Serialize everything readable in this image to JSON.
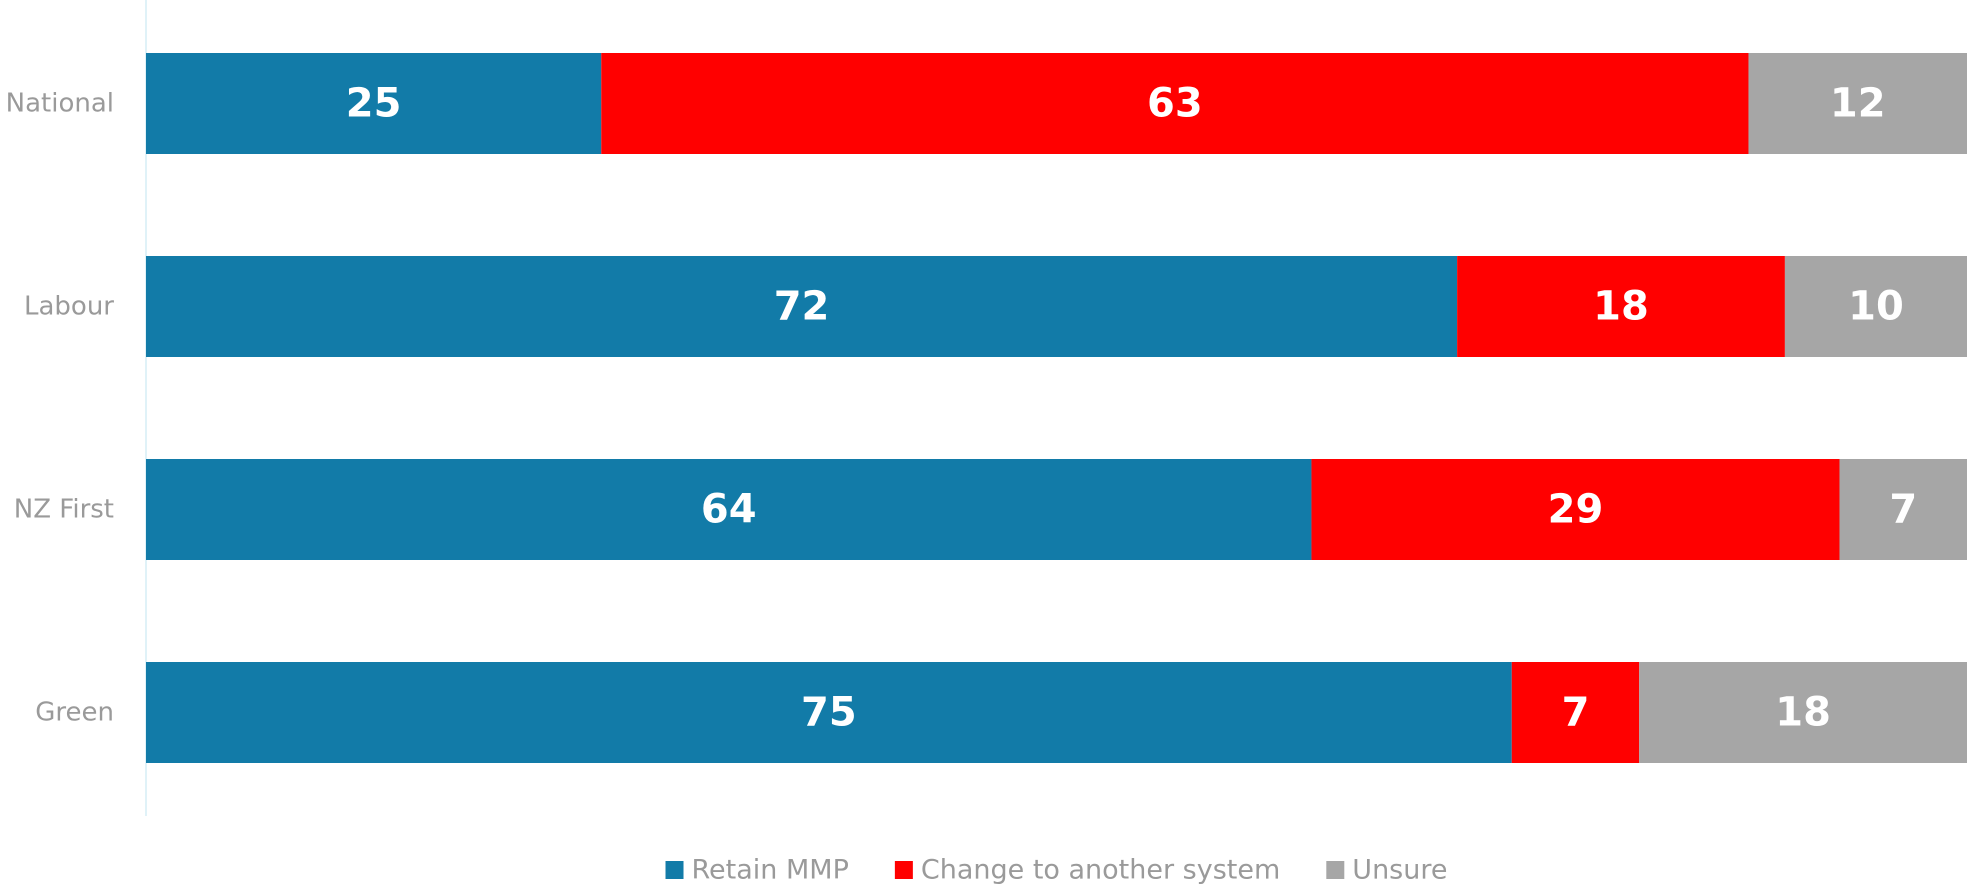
{
  "chart_data": {
    "type": "bar",
    "orientation": "horizontal",
    "stacked": true,
    "categories": [
      "National",
      "Labour",
      "NZ First",
      "Green"
    ],
    "series": [
      {
        "name": "Retain MMP",
        "values": [
          25,
          72,
          64,
          75
        ],
        "color": "#127ba8"
      },
      {
        "name": "Change to another system",
        "values": [
          63,
          18,
          29,
          7
        ],
        "color": "#ff0000"
      },
      {
        "name": "Unsure",
        "values": [
          12,
          10,
          7,
          18
        ],
        "color": "#a6a6a6"
      }
    ],
    "xlim": [
      0,
      100
    ],
    "title": "",
    "xlabel": "",
    "ylabel": "",
    "grid": false,
    "legend_position": "bottom"
  }
}
